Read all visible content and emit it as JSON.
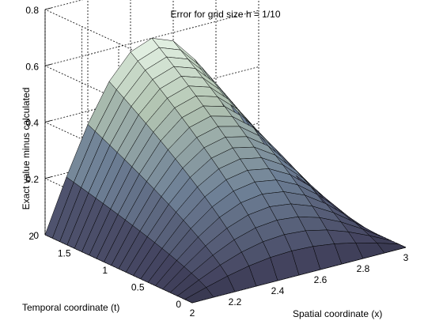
{
  "chart_data": {
    "type": "surface3d",
    "title": "Error for grid size h = 1/10",
    "xlabel": "Spatial coordinate (x)",
    "ylabel": "Temporal coordinate (t)",
    "zlabel": "Exact value minus calculated",
    "xlim": [
      2,
      3
    ],
    "ylim": [
      0,
      2
    ],
    "zlim": [
      0,
      0.8
    ],
    "xticks": [
      "2",
      "2.2",
      "2.4",
      "2.6",
      "2.8",
      "3"
    ],
    "yticks": [
      "0",
      "0.5",
      "1",
      "1.5",
      "2"
    ],
    "zticks": [
      "0",
      "0.2",
      "0.4",
      "0.6",
      "0.8"
    ],
    "grid": true,
    "colormap": "bone",
    "grid_resolution": {
      "x_steps": 10,
      "t_steps": 20
    },
    "surface_peak": {
      "x": 2.5,
      "t": 2,
      "value": 0.6
    },
    "surface_model": "error(x,t) = 0.6 * sin(pi*(x-2)) * (t/2)^0.7",
    "sample_values": [
      {
        "x": 2.5,
        "t": 0.5,
        "value": 0.23
      },
      {
        "x": 2.5,
        "t": 1.0,
        "value": 0.37
      },
      {
        "x": 2.5,
        "t": 1.5,
        "value": 0.49
      },
      {
        "x": 2.5,
        "t": 2.0,
        "value": 0.6
      },
      {
        "x": 2.2,
        "t": 2.0,
        "value": 0.35
      },
      {
        "x": 2.8,
        "t": 2.0,
        "value": 0.35
      }
    ]
  }
}
